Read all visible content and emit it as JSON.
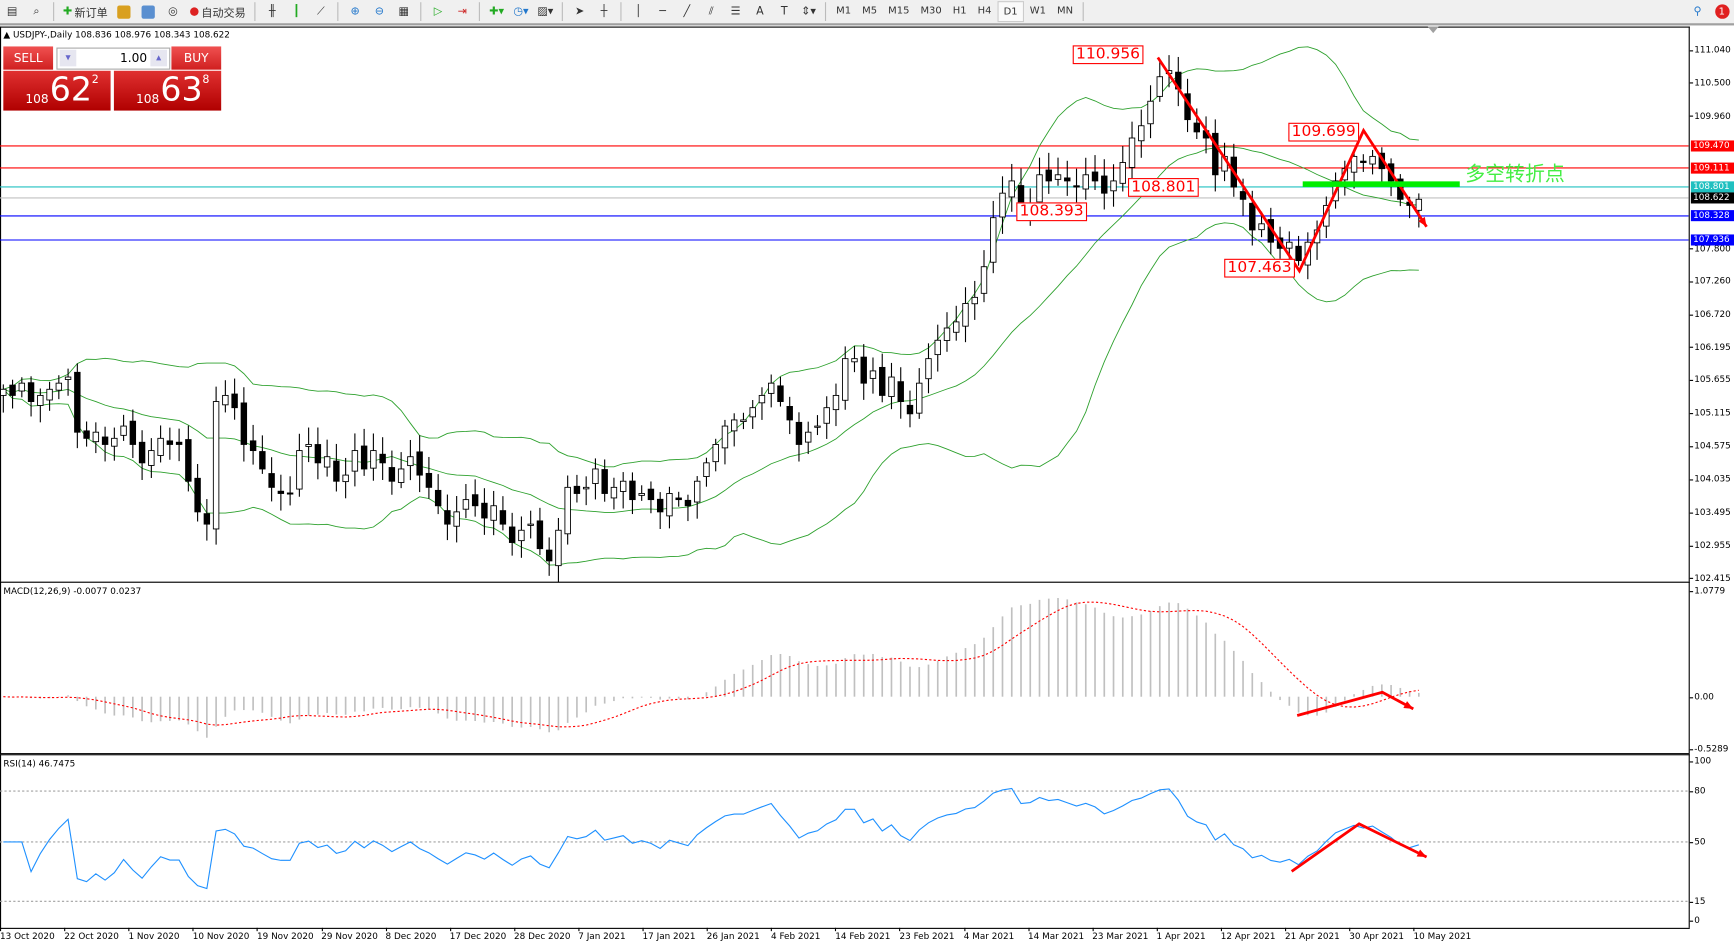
{
  "toolbar": {
    "new_order": "新订单",
    "auto_trade": "自动交易",
    "timeframes": [
      "M1",
      "M5",
      "M15",
      "M30",
      "H1",
      "H4",
      "D1",
      "W1",
      "MN"
    ],
    "active_timeframe": "D1",
    "notification_count": "1"
  },
  "chart": {
    "info": "USDJPY-,Daily  108.836 108.976 108.343 108.622",
    "trade": {
      "sell": "SELL",
      "buy": "BUY",
      "lot": "1.00",
      "bid_big": "108",
      "bid_main": "62",
      "bid_pip": "2",
      "ask_big": "108",
      "ask_main": "63",
      "ask_pip": "8"
    },
    "price_ticks": [
      "111.040",
      "110.500",
      "109.960",
      "107.800",
      "107.260",
      "106.720",
      "106.195",
      "105.655",
      "105.115",
      "104.575",
      "104.035",
      "103.495",
      "102.955",
      "102.415"
    ],
    "price_tags": [
      {
        "value": "109.470",
        "color": "#ff0000"
      },
      {
        "value": "109.111",
        "color": "#ff0000"
      },
      {
        "value": "108.801",
        "color": "#20c0c0"
      },
      {
        "value": "108.622",
        "color": "#000000"
      },
      {
        "value": "108.328",
        "color": "#0000ff"
      },
      {
        "value": "107.936",
        "color": "#0000ff"
      }
    ],
    "annotations": [
      "110.956",
      "108.393",
      "108.801",
      "109.699",
      "107.463"
    ],
    "pivot_text": "多空转折点"
  },
  "macd": {
    "label": "MACD(12,26,9) -0.0077 0.0237",
    "ticks": [
      "1.0779",
      "0.00",
      "-0.5289"
    ]
  },
  "rsi": {
    "label": "RSI(14) 46.7475",
    "ticks": [
      "100",
      "80",
      "50",
      "15",
      "0"
    ]
  },
  "dates": [
    "13 Oct 2020",
    "22 Oct 2020",
    "1 Nov 2020",
    "10 Nov 2020",
    "19 Nov 2020",
    "29 Nov 2020",
    "8 Dec 2020",
    "17 Dec 2020",
    "28 Dec 2020",
    "7 Jan 2021",
    "17 Jan 2021",
    "26 Jan 2021",
    "4 Feb 2021",
    "14 Feb 2021",
    "23 Feb 2021",
    "4 Mar 2021",
    "14 Mar 2021",
    "23 Mar 2021",
    "1 Apr 2021",
    "12 Apr 2021",
    "21 Apr 2021",
    "30 Apr 2021",
    "10 May 2021"
  ],
  "chart_data": {
    "type": "candlestick",
    "symbol": "USDJPY",
    "timeframe": "Daily",
    "closes": [
      105.5,
      105.4,
      105.6,
      105.3,
      105.4,
      105.5,
      105.6,
      105.7,
      104.8,
      104.7,
      104.8,
      104.6,
      104.7,
      104.9,
      104.6,
      104.3,
      104.5,
      104.7,
      104.6,
      104.6,
      104.0,
      103.5,
      103.3,
      105.3,
      105.4,
      105.2,
      104.6,
      104.5,
      104.2,
      103.9,
      103.8,
      103.8,
      104.5,
      104.6,
      104.3,
      104.4,
      104.0,
      104.1,
      104.5,
      104.2,
      104.5,
      104.3,
      104.0,
      104.2,
      104.4,
      104.1,
      103.9,
      103.6,
      103.3,
      103.5,
      103.7,
      103.6,
      103.4,
      103.6,
      103.3,
      103.0,
      103.2,
      103.3,
      102.9,
      102.7,
      103.2,
      103.9,
      103.8,
      103.9,
      104.2,
      103.8,
      103.9,
      104.0,
      103.7,
      103.8,
      103.7,
      103.5,
      103.8,
      103.7,
      103.6,
      104.0,
      104.3,
      104.6,
      104.9,
      105.0,
      105.0,
      105.2,
      105.4,
      105.6,
      105.3,
      105.0,
      104.6,
      104.8,
      104.9,
      105.2,
      105.4,
      106.0,
      106.0,
      105.6,
      105.8,
      105.4,
      105.7,
      105.3,
      105.1,
      105.6,
      106.0,
      106.3,
      106.5,
      106.6,
      106.9,
      107.0,
      107.5,
      108.3,
      108.7,
      108.9,
      108.4,
      108.5,
      109.0,
      108.9,
      109.0,
      108.9,
      108.8,
      109.0,
      108.9,
      108.7,
      108.9,
      109.2,
      109.6,
      109.8,
      110.2,
      110.6,
      110.7,
      110.4,
      109.9,
      109.7,
      109.6,
      109.0,
      109.3,
      108.8,
      108.6,
      108.1,
      108.2,
      107.9,
      107.8,
      107.9,
      107.6,
      107.9,
      108.1,
      108.5,
      108.9,
      109.1,
      109.3,
      109.2,
      109.3,
      109.1,
      108.9,
      108.6,
      108.5,
      108.6
    ],
    "indicators": [
      "Bollinger Bands(20,2)",
      "MACD(12,26,9)",
      "RSI(14)"
    ],
    "horizontal_levels": [
      109.47,
      109.111,
      108.801,
      108.622,
      108.328,
      107.936
    ],
    "rsi_levels": [
      80,
      50,
      15
    ],
    "colors": {
      "bands": "#2ca02c",
      "rsi": "#1e90ff",
      "macd_signal": "#ff0000",
      "macd_hist": "#c0c0c0",
      "annotation": "#ff0000",
      "pivot": "#00ee00"
    }
  }
}
